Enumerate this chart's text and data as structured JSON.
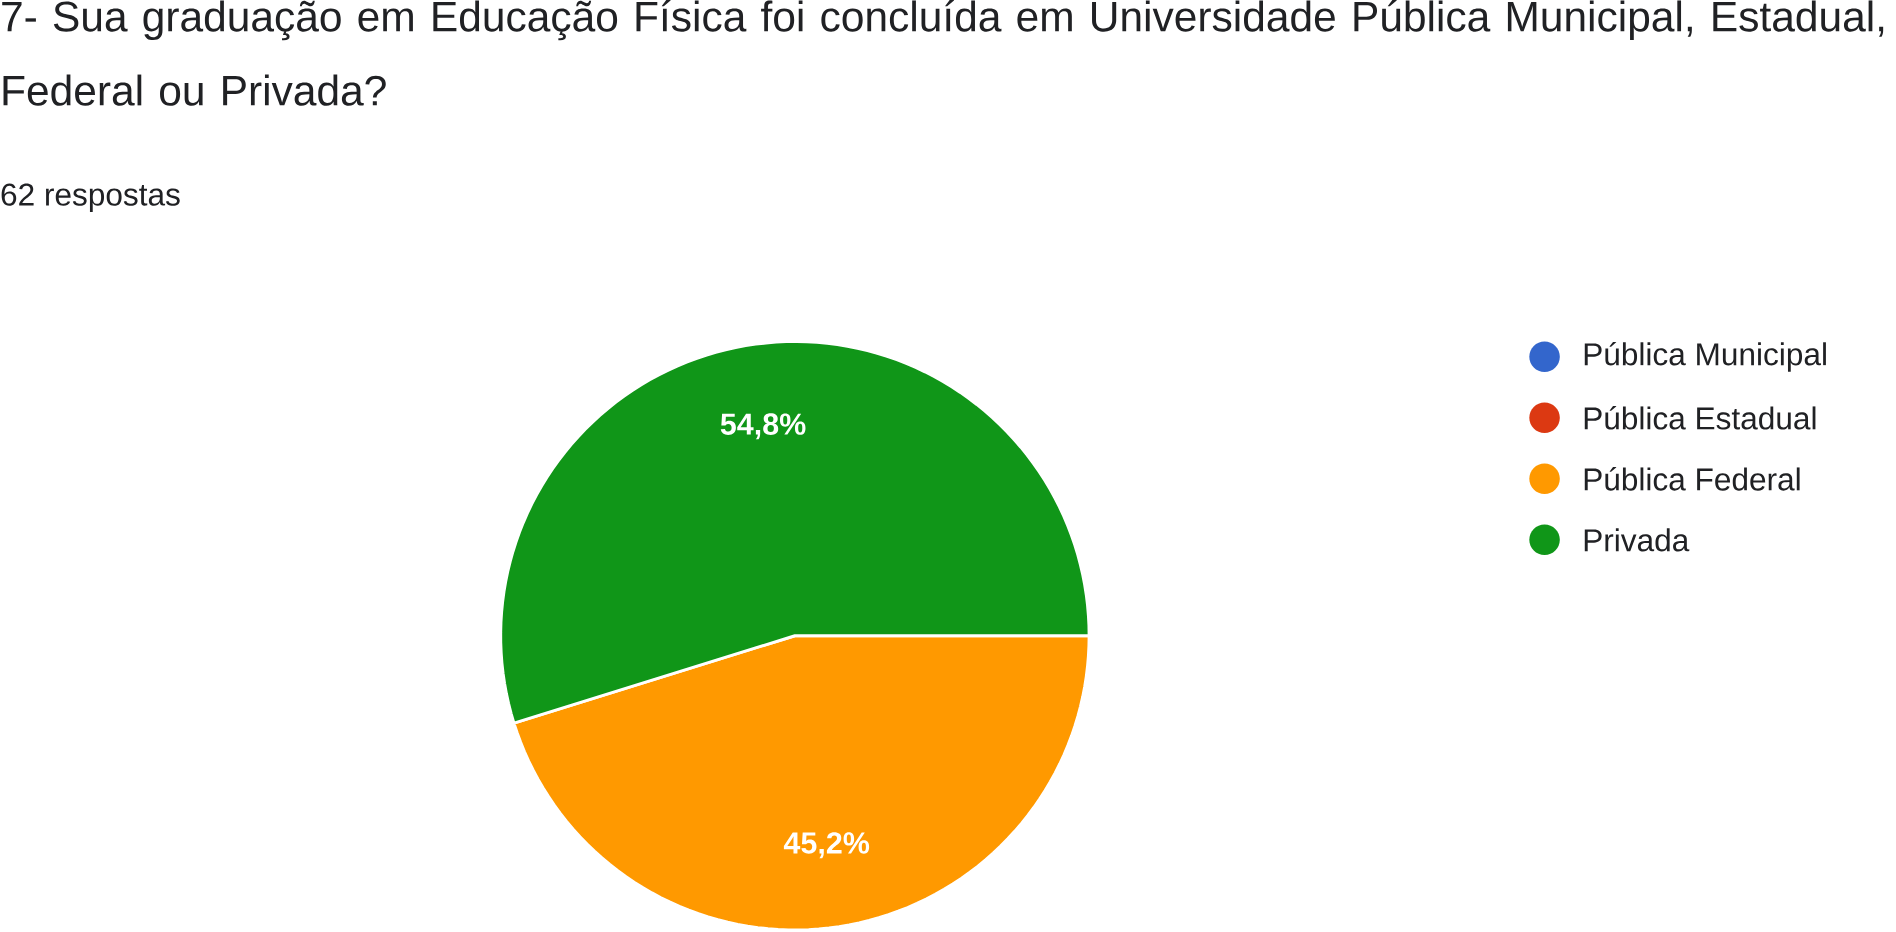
{
  "chart_data": {
    "type": "pie",
    "title": "7- Sua graduação em Educação Física foi concluída em Universidade Pública Municipal, Estadual, Federal ou Privada?",
    "subtitle": "62 respostas",
    "categories": [
      "Pública Municipal",
      "Pública Estadual",
      "Pública Federal",
      "Privada"
    ],
    "values": [
      0,
      0,
      45.2,
      54.8
    ],
    "colors": [
      "#3366cc",
      "#dc3912",
      "#ff9900",
      "#109618"
    ],
    "value_labels": [
      null,
      null,
      "45,2%",
      "54,8%"
    ],
    "legend": "right"
  }
}
